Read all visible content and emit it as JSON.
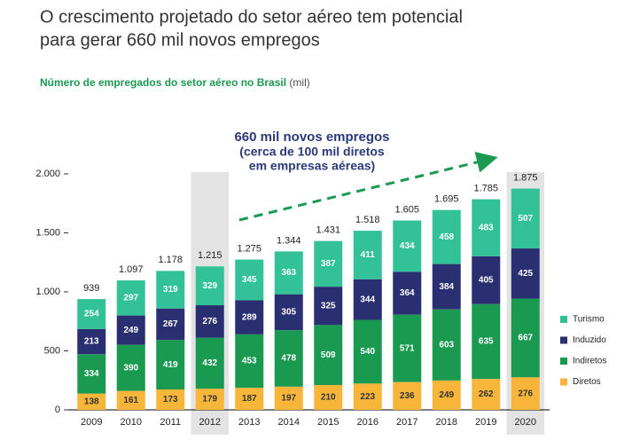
{
  "chart_data": {
    "type": "stacked_bar",
    "title_lines": [
      "O crescimento projetado do setor aéreo tem potencial",
      "para gerar 660 mil novos empregos"
    ],
    "subtitle": "Número de empregados do setor aéreo no Brasil",
    "unit": "(mil)",
    "annotation_lines": [
      "660 mil novos empregos",
      "(cerca de 100 mil diretos",
      "em empresas aéreas)"
    ],
    "categories": [
      "2009",
      "2010",
      "2011",
      "2012",
      "2013",
      "2014",
      "2015",
      "2016",
      "2017",
      "2018",
      "2019",
      "2020"
    ],
    "highlight_indices": [
      3,
      11
    ],
    "series": [
      {
        "name": "Diretos",
        "color": "#f7b63a",
        "label_color": "#333333",
        "values": [
          138,
          161,
          173,
          179,
          187,
          197,
          210,
          223,
          236,
          249,
          262,
          276
        ]
      },
      {
        "name": "Indiretos",
        "color": "#1a9a50",
        "label_color": "#ffffff",
        "values": [
          334,
          390,
          419,
          432,
          453,
          478,
          509,
          540,
          571,
          603,
          635,
          667
        ]
      },
      {
        "name": "Induzido",
        "color": "#2a2f72",
        "label_color": "#ffffff",
        "values": [
          213,
          249,
          267,
          276,
          289,
          305,
          325,
          344,
          364,
          384,
          405,
          425
        ]
      },
      {
        "name": "Turismo",
        "color": "#33c297",
        "label_color": "#ffffff",
        "values": [
          254,
          297,
          319,
          329,
          345,
          363,
          387,
          411,
          434,
          458,
          483,
          507
        ]
      }
    ],
    "totals": {
      "values": [
        939,
        1097,
        1178,
        1215,
        1275,
        1344,
        1431,
        1518,
        1605,
        1695,
        1785,
        1875
      ],
      "value_labels": [
        "939",
        "1.097",
        "1.178",
        "1.215",
        "1.275",
        "1.344",
        "1.431",
        "1.518",
        "1.605",
        "1.695",
        "1.785",
        "1.875"
      ]
    },
    "ylim": [
      0,
      2000
    ],
    "yticks": [
      0,
      500,
      {
        "value": 1000,
        "label": "1.000"
      },
      {
        "value": 1500,
        "label": "1.500"
      },
      {
        "value": 2000,
        "label": "2.000"
      }
    ]
  }
}
